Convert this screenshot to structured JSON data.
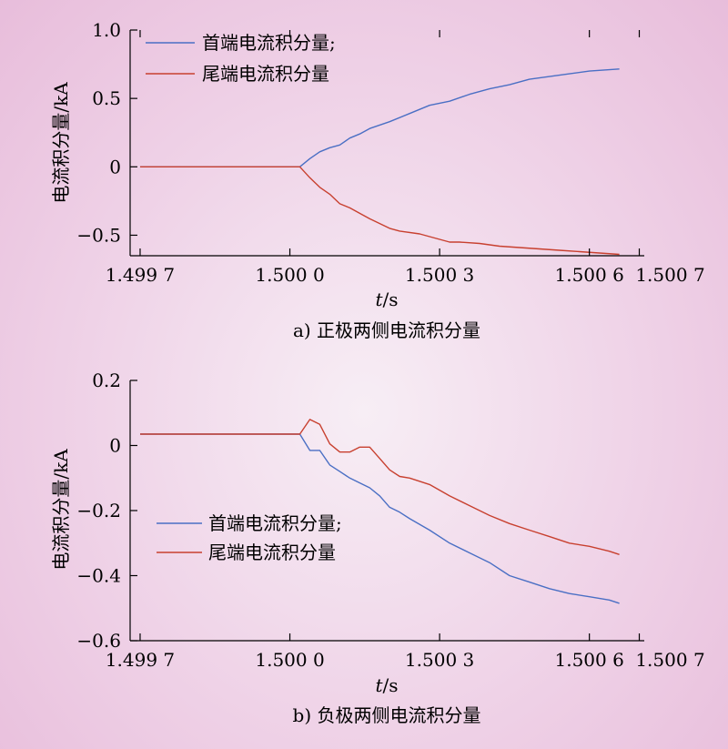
{
  "chart_data": [
    {
      "type": "line",
      "caption": "a) 正极两侧电流积分量",
      "ylabel": "电流积分量/kA",
      "xlabel": "t/s",
      "xlabel_italic": "t",
      "xlabel_rest": "/s",
      "xlim": [
        1.49968,
        1.50071
      ],
      "ylim": [
        -0.65,
        1.0
      ],
      "x_ticks": [
        1.4997,
        1.5,
        1.5003,
        1.5006,
        1.5007
      ],
      "x_tick_labels": [
        "1.499 7",
        "1.500 0",
        "1.500 3",
        "1.500 6",
        "1.500 7"
      ],
      "y_ticks": [
        1.0,
        0.5,
        0,
        -0.5
      ],
      "y_tick_labels": [
        "1.0",
        "0.5",
        "0",
        "−0.5"
      ],
      "grid": false,
      "legend_position": "top-left",
      "series": [
        {
          "name": "首端电流积分量;",
          "color": "#4a6fc4",
          "x": [
            1.4997,
            1.50002,
            1.50004,
            1.50006,
            1.50008,
            1.5001,
            1.50012,
            1.50014,
            1.50016,
            1.5002,
            1.50024,
            1.50028,
            1.50032,
            1.50036,
            1.5004,
            1.50044,
            1.50048,
            1.50052,
            1.50056,
            1.5006,
            1.50064,
            1.50066
          ],
          "values": [
            0,
            0,
            0.06,
            0.11,
            0.14,
            0.16,
            0.21,
            0.24,
            0.28,
            0.33,
            0.39,
            0.45,
            0.48,
            0.53,
            0.57,
            0.6,
            0.64,
            0.66,
            0.68,
            0.7,
            0.71,
            0.715
          ]
        },
        {
          "name": "尾端电流积分量",
          "color": "#c8402f",
          "x": [
            1.4997,
            1.50002,
            1.50004,
            1.50006,
            1.50008,
            1.5001,
            1.50012,
            1.50014,
            1.50016,
            1.5002,
            1.50022,
            1.50026,
            1.50028,
            1.50032,
            1.50034,
            1.50038,
            1.50042,
            1.50046,
            1.5005,
            1.50054,
            1.50058,
            1.50062,
            1.50066
          ],
          "values": [
            0,
            0,
            -0.08,
            -0.15,
            -0.2,
            -0.27,
            -0.3,
            -0.34,
            -0.38,
            -0.45,
            -0.47,
            -0.49,
            -0.51,
            -0.55,
            -0.55,
            -0.56,
            -0.58,
            -0.59,
            -0.6,
            -0.61,
            -0.62,
            -0.63,
            -0.64
          ]
        }
      ]
    },
    {
      "type": "line",
      "caption": "b) 负极两侧电流积分量",
      "ylabel": "电流积分量/kA",
      "xlabel": "t/s",
      "xlabel_italic": "t",
      "xlabel_rest": "/s",
      "xlim": [
        1.49968,
        1.50071
      ],
      "ylim": [
        -0.6,
        0.2
      ],
      "x_ticks": [
        1.4997,
        1.5,
        1.5003,
        1.5006,
        1.5007
      ],
      "x_tick_labels": [
        "1.499 7",
        "1.500 0",
        "1.500 3",
        "1.500 6",
        "1.500 7"
      ],
      "y_ticks": [
        0.2,
        0,
        -0.2,
        -0.4,
        -0.6
      ],
      "y_tick_labels": [
        "0.2",
        "0",
        "−0.2",
        "−0.4",
        "−0.6"
      ],
      "grid": false,
      "legend_position": "center-left",
      "series": [
        {
          "name": "首端电流积分量;",
          "color": "#4a6fc4",
          "x": [
            1.4997,
            1.50002,
            1.50004,
            1.50006,
            1.50008,
            1.5001,
            1.50012,
            1.50014,
            1.50016,
            1.50018,
            1.5002,
            1.50022,
            1.50024,
            1.50028,
            1.50032,
            1.50036,
            1.5004,
            1.50044,
            1.50048,
            1.50052,
            1.50056,
            1.5006,
            1.50064,
            1.50066
          ],
          "values": [
            0.035,
            0.035,
            -0.015,
            -0.015,
            -0.06,
            -0.08,
            -0.1,
            -0.115,
            -0.13,
            -0.155,
            -0.19,
            -0.205,
            -0.225,
            -0.26,
            -0.3,
            -0.33,
            -0.36,
            -0.4,
            -0.42,
            -0.44,
            -0.455,
            -0.465,
            -0.475,
            -0.485
          ]
        },
        {
          "name": "尾端电流积分量",
          "color": "#c8402f",
          "x": [
            1.4997,
            1.50002,
            1.50004,
            1.50006,
            1.50008,
            1.5001,
            1.50012,
            1.50014,
            1.50016,
            1.50018,
            1.5002,
            1.50022,
            1.50024,
            1.50028,
            1.50032,
            1.50036,
            1.5004,
            1.50044,
            1.50048,
            1.50052,
            1.50056,
            1.5006,
            1.50064,
            1.50066
          ],
          "values": [
            0.035,
            0.035,
            0.08,
            0.065,
            0.005,
            -0.02,
            -0.02,
            -0.005,
            -0.005,
            -0.04,
            -0.075,
            -0.095,
            -0.1,
            -0.12,
            -0.155,
            -0.185,
            -0.215,
            -0.24,
            -0.26,
            -0.28,
            -0.3,
            -0.31,
            -0.325,
            -0.335
          ]
        }
      ]
    }
  ]
}
